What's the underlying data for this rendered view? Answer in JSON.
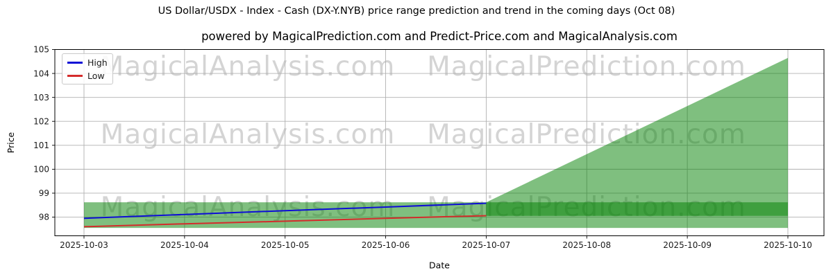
{
  "watermarks": {
    "left_text": "MagicalAnalysis.com",
    "right_text": "MagicalPrediction.com"
  },
  "chart_data": {
    "type": "line",
    "title": "US Dollar/USDX - Index - Cash (DX-Y.NYB) price range prediction and trend in the coming days (Oct 08)",
    "subtitle": "powered by MagicalPrediction.com and Predict-Price.com and MagicalAnalysis.com",
    "xlabel": "Date",
    "ylabel": "Price",
    "x_dates": [
      "2025-10-03",
      "2025-10-04",
      "2025-10-05",
      "2025-10-06",
      "2025-10-07",
      "2025-10-08",
      "2025-10-09",
      "2025-10-10"
    ],
    "yticks": [
      98,
      99,
      100,
      101,
      102,
      103,
      104,
      105
    ],
    "ylim": [
      97.22,
      105
    ],
    "grid": true,
    "legend": {
      "position": "upper-left"
    },
    "series": [
      {
        "name": "High",
        "color": "#0d0dd6",
        "dates": [
          "2025-10-03",
          "2025-10-04",
          "2025-10-05",
          "2025-10-06",
          "2025-10-07"
        ],
        "values": [
          97.95,
          98.11,
          98.27,
          98.42,
          98.58
        ]
      },
      {
        "name": "Low",
        "color": "#d42b2b",
        "dates": [
          "2025-10-03",
          "2025-10-04",
          "2025-10-05",
          "2025-10-06",
          "2025-10-07"
        ],
        "values": [
          97.6,
          97.72,
          97.83,
          97.95,
          98.06
        ]
      }
    ],
    "bands": [
      {
        "name": "historical-range-band",
        "from": "2025-10-03",
        "to": "2025-10-10",
        "low": 97.55,
        "high": 98.62,
        "color": "#008000",
        "opacity": 0.5
      },
      {
        "name": "prediction-cone",
        "from": "2025-10-07",
        "to": "2025-10-10",
        "low_from": 98.05,
        "low_to": 98.05,
        "high_from": 98.62,
        "high_to": 104.65,
        "color": "#008000",
        "opacity": 0.5
      }
    ]
  }
}
